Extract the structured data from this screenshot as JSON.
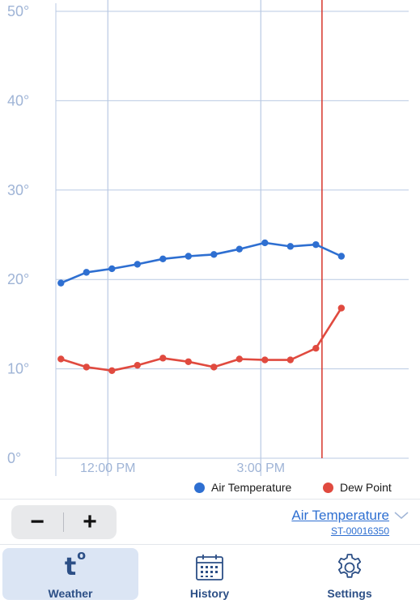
{
  "chart_data": {
    "type": "line",
    "y_ticks": [
      "0°",
      "10°",
      "20°",
      "30°",
      "40°",
      "50°"
    ],
    "y_tick_values": [
      0,
      10,
      20,
      30,
      40,
      50
    ],
    "ylim": [
      0,
      50
    ],
    "x_ticks": [
      {
        "label": "12:00 PM",
        "hour": 12.0
      },
      {
        "label": "3:00 PM",
        "hour": 15.0
      }
    ],
    "xlim_hours": [
      10.98,
      17.9
    ],
    "now_marker_hour": 16.2,
    "grid": true,
    "legend_position": "bottom-right",
    "series": [
      {
        "name": "Air Temperature",
        "color": "#2e6fd1",
        "x_hours": [
          11.08,
          11.58,
          12.08,
          12.58,
          13.08,
          13.58,
          14.08,
          14.58,
          15.08,
          15.58,
          16.08,
          16.58
        ],
        "values": [
          19.6,
          20.8,
          21.2,
          21.7,
          22.3,
          22.6,
          22.8,
          23.4,
          24.1,
          23.7,
          23.9,
          22.6
        ]
      },
      {
        "name": "Dew Point",
        "color": "#e04a3f",
        "x_hours": [
          11.08,
          11.58,
          12.08,
          12.58,
          13.08,
          13.58,
          14.08,
          14.58,
          15.08,
          15.58,
          16.08,
          16.58
        ],
        "values": [
          11.1,
          10.2,
          9.8,
          10.4,
          11.2,
          10.8,
          10.2,
          11.1,
          11.0,
          11.0,
          12.3,
          16.8
        ]
      }
    ]
  },
  "legend": {
    "items": [
      {
        "label": "Air Temperature",
        "color": "#2e6fd1"
      },
      {
        "label": "Dew Point",
        "color": "#e04a3f"
      }
    ]
  },
  "toolbar": {
    "zoom_out_label": "−",
    "zoom_in_label": "+",
    "metric_label": "Air Temperature",
    "station_id": "ST-00016350"
  },
  "tabs": [
    {
      "label": "Weather",
      "icon": "temperature-icon",
      "active": true
    },
    {
      "label": "History",
      "icon": "calendar-icon",
      "active": false
    },
    {
      "label": "Settings",
      "icon": "gear-icon",
      "active": false
    }
  ],
  "colors": {
    "accent": "#2e6fd1",
    "grid": "#b9c9e3",
    "axis_text": "#9fb4d6",
    "now_line": "#d6342a",
    "tab_active_bg": "#dbe5f4",
    "tab_text": "#2c4f86"
  }
}
